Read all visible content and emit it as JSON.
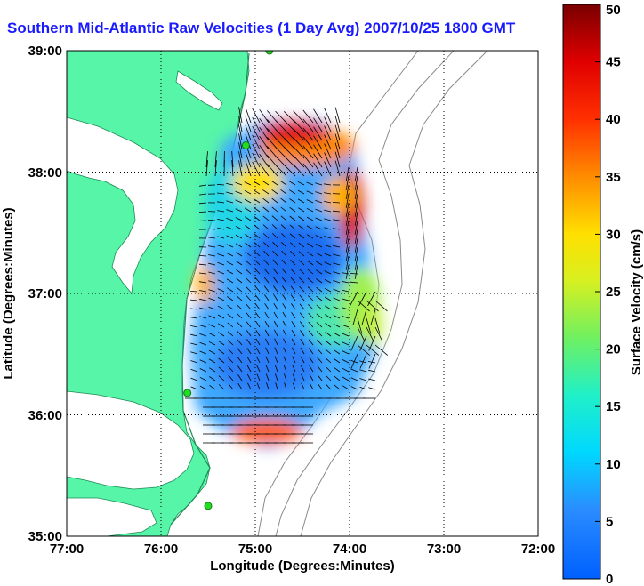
{
  "title": "Southern Mid-Atlantic Raw Velocities (1 Day Avg) 2007/10/25 1800 GMT",
  "x_axis": {
    "label": "Longitude (Degrees:Minutes)",
    "ticks": [
      "77:00",
      "76:00",
      "75:00",
      "74:00",
      "73:00",
      "72:00"
    ],
    "range": [
      -77,
      -72
    ]
  },
  "y_axis": {
    "label": "Latitude (Degrees:Minutes)",
    "ticks": [
      "39:00",
      "38:00",
      "37:00",
      "36:00",
      "35:00"
    ],
    "range": [
      35,
      39
    ]
  },
  "colorbar": {
    "label": "Surface Velocity (cm/s)",
    "ticks": [
      "50",
      "45",
      "40",
      "35",
      "30",
      "25",
      "20",
      "15",
      "10",
      "5",
      "0"
    ],
    "range": [
      0,
      50
    ]
  },
  "colors": {
    "land": "#57f5a8",
    "ocean": "#ffffff",
    "bathymetry": "#8a8a8a",
    "grid": "#000000",
    "title": "#1a1aff",
    "station": "#22dd22"
  },
  "stations": [
    {
      "lon": -74.85,
      "lat": 39.0
    },
    {
      "lon": -75.1,
      "lat": 38.22
    },
    {
      "lon": -75.72,
      "lat": 36.18
    },
    {
      "lon": -75.5,
      "lat": 35.25
    }
  ]
}
